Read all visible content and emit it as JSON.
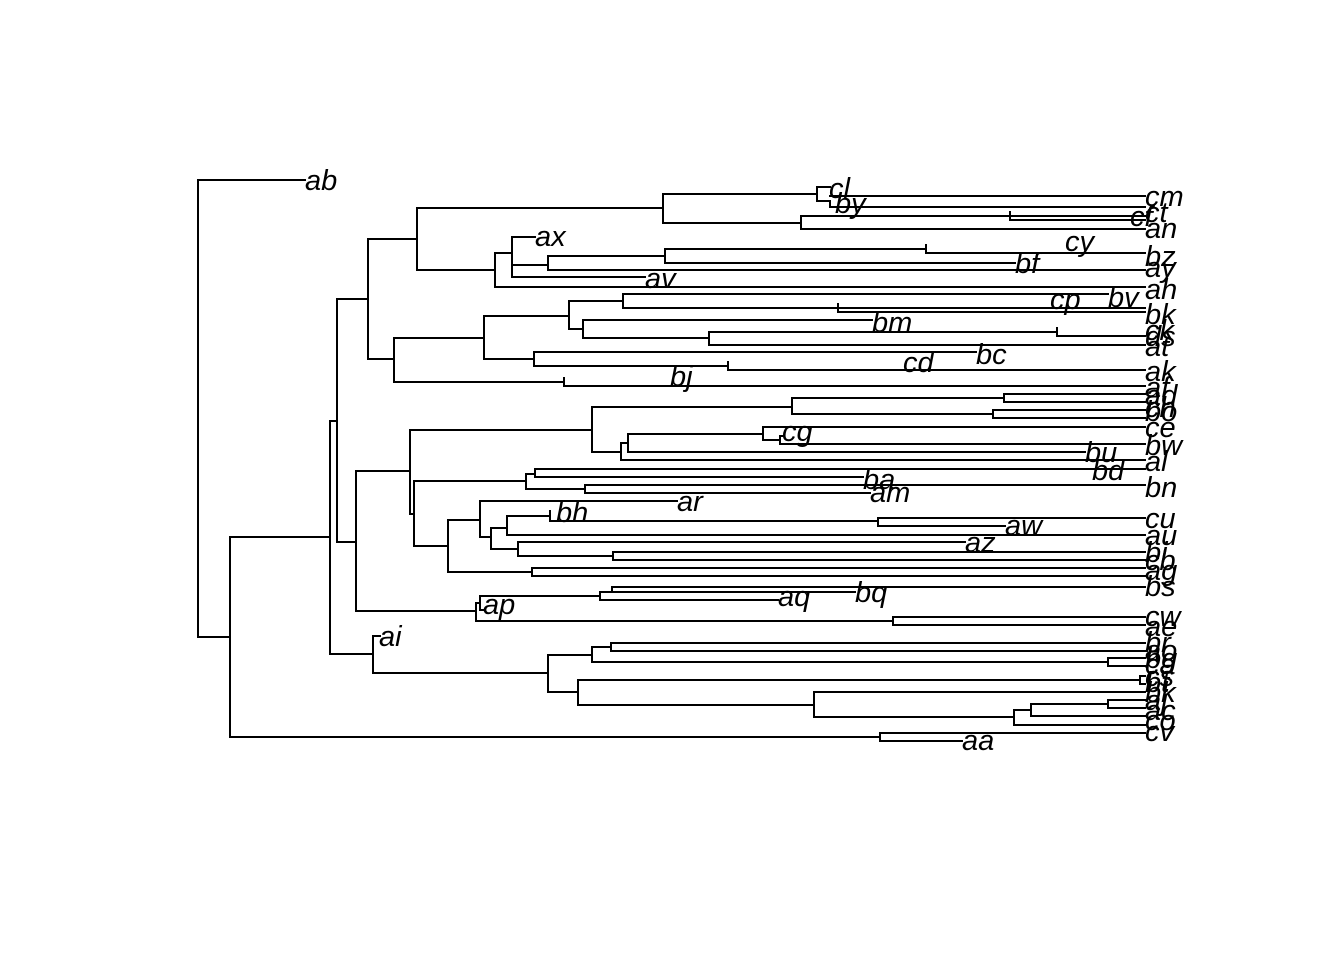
{
  "tree": {
    "labels": {
      "ab": "ab",
      "cm": "cm",
      "cl": "cl",
      "by": "by",
      "cf": "cf",
      "an": "an",
      "ax": "ax",
      "cy": "cy",
      "bz": "bz",
      "bf": "bf",
      "ay": "ay",
      "av": "av",
      "ah": "ah",
      "cp": "cp",
      "bv": "bv",
      "bk": "bk",
      "bm": "bm",
      "ck": "ck",
      "ds": "ds",
      "at": "at",
      "bc": "bc",
      "cd": "cd",
      "ak": "ak",
      "bj": "bj",
      "af": "af",
      "ad": "ad",
      "ch": "ch",
      "bo": "bo",
      "ce": "ce",
      "cg": "cg",
      "bw": "bw",
      "bu": "bu",
      "al": "al",
      "bd": "bd",
      "ba": "ba",
      "bn": "bn",
      "am": "am",
      "ar": "ar",
      "bh": "bh",
      "aw": "aw",
      "cu": "cu",
      "au": "au",
      "az": "az",
      "bi": "bi",
      "cb": "cb",
      "ag": "ag",
      "bs": "bs",
      "bq": "bq",
      "aq": "aq",
      "ap": "ap",
      "cw": "cw",
      "ae": "ae",
      "ai": "ai",
      "br": "br",
      "ao": "ao",
      "bg": "bg",
      "ca": "ca",
      "ck2": "ct",
      "cs": "cs",
      "bt": "bt",
      "bk2": "bk",
      "aj": "aj",
      "ac": "ac",
      "co": "co",
      "aa": "aa",
      "cv": "cv"
    }
  }
}
